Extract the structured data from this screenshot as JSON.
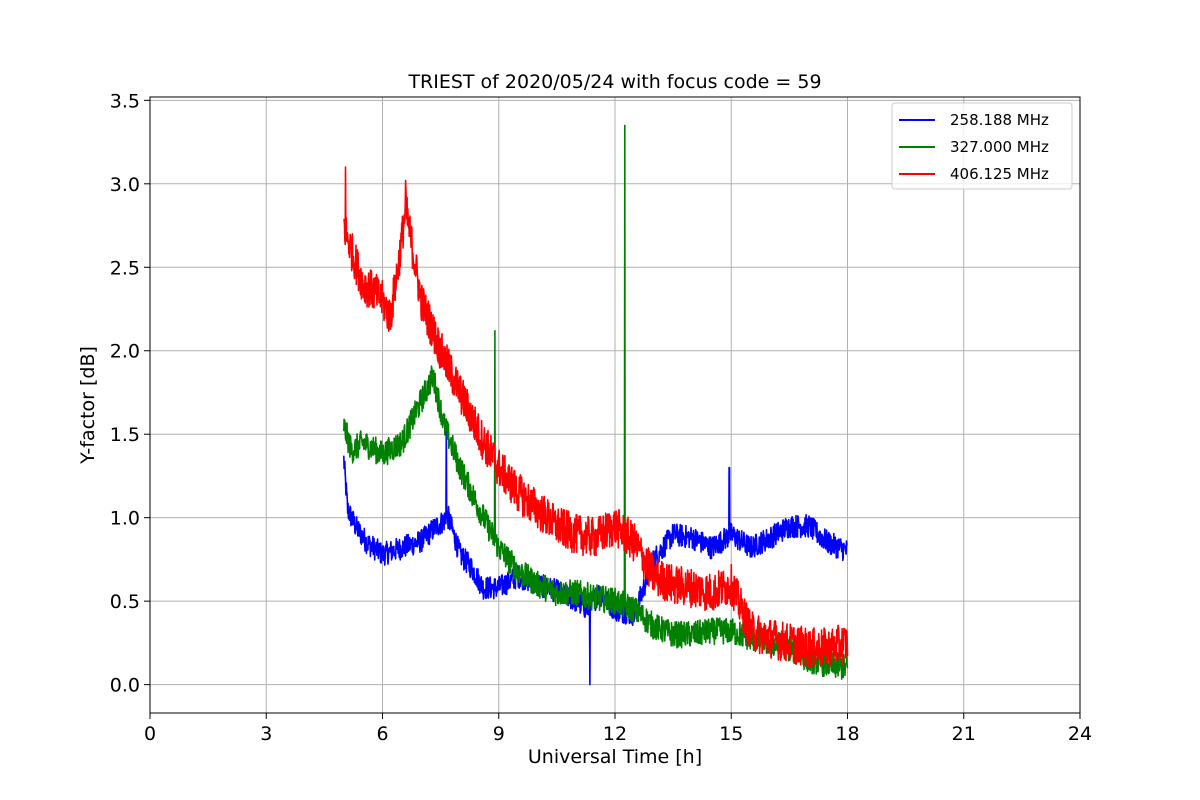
{
  "chart_data": {
    "type": "line",
    "title": "TRIEST of 2020/05/24 with focus code = 59",
    "xlabel": "Universal Time [h]",
    "ylabel": "Y-factor [dB]",
    "xlim": [
      0,
      24
    ],
    "ylim": [
      -0.17,
      3.52
    ],
    "xticks": [
      0,
      3,
      6,
      9,
      12,
      15,
      18,
      21,
      24
    ],
    "yticks": [
      0.0,
      0.5,
      1.0,
      1.5,
      2.0,
      2.5,
      3.0,
      3.5
    ],
    "ytick_labels": [
      "0.0",
      "0.5",
      "1.0",
      "1.5",
      "2.0",
      "2.5",
      "3.0",
      "3.5"
    ],
    "grid": true,
    "legend_position": "top-right",
    "series": [
      {
        "name": "258.188 MHz",
        "color": "#0000ff",
        "x": [
          5.0,
          5.1,
          5.3,
          5.6,
          6.0,
          6.5,
          7.0,
          7.4,
          7.7,
          8.0,
          8.3,
          8.6,
          9.0,
          9.5,
          10.0,
          10.5,
          11.0,
          11.3,
          11.6,
          12.0,
          12.5,
          13.0,
          13.5,
          14.0,
          14.5,
          15.0,
          15.5,
          16.0,
          16.5,
          17.0,
          17.5,
          18.0
        ],
        "y": [
          1.35,
          1.05,
          0.95,
          0.85,
          0.78,
          0.82,
          0.86,
          0.95,
          1.0,
          0.78,
          0.7,
          0.58,
          0.58,
          0.65,
          0.6,
          0.56,
          0.5,
          0.45,
          0.55,
          0.45,
          0.42,
          0.75,
          0.9,
          0.88,
          0.82,
          0.9,
          0.82,
          0.88,
          0.95,
          0.95,
          0.85,
          0.8
        ]
      },
      {
        "name": "327.000 MHz",
        "color": "#008000",
        "x": [
          5.0,
          5.2,
          5.5,
          6.0,
          6.5,
          7.0,
          7.3,
          7.6,
          8.0,
          8.5,
          9.0,
          9.5,
          10.0,
          10.5,
          11.0,
          11.5,
          12.0,
          12.5,
          13.0,
          13.5,
          14.0,
          14.5,
          15.0,
          15.5,
          16.0,
          16.5,
          17.0,
          17.5,
          18.0
        ],
        "y": [
          1.55,
          1.4,
          1.45,
          1.38,
          1.45,
          1.7,
          1.85,
          1.55,
          1.3,
          1.05,
          0.82,
          0.68,
          0.6,
          0.55,
          0.55,
          0.52,
          0.5,
          0.45,
          0.35,
          0.3,
          0.3,
          0.32,
          0.32,
          0.28,
          0.25,
          0.22,
          0.15,
          0.12,
          0.1
        ]
      },
      {
        "name": "406.125 MHz",
        "color": "#ff0000",
        "x": [
          5.0,
          5.2,
          5.5,
          5.8,
          6.0,
          6.2,
          6.4,
          6.6,
          7.0,
          7.5,
          8.0,
          8.5,
          9.0,
          9.5,
          10.0,
          10.5,
          11.0,
          11.5,
          12.0,
          12.5,
          13.0,
          13.5,
          14.0,
          14.5,
          15.0,
          15.5,
          16.0,
          16.5,
          17.0,
          17.5,
          18.0
        ],
        "y": [
          2.75,
          2.6,
          2.4,
          2.35,
          2.3,
          2.2,
          2.5,
          2.85,
          2.3,
          2.0,
          1.75,
          1.5,
          1.3,
          1.15,
          1.05,
          0.95,
          0.9,
          0.88,
          0.95,
          0.85,
          0.65,
          0.6,
          0.58,
          0.55,
          0.6,
          0.32,
          0.28,
          0.25,
          0.22,
          0.22,
          0.25
        ]
      }
    ],
    "spikes": [
      {
        "series": "327.000 MHz",
        "x": 12.25,
        "y": 3.35
      },
      {
        "series": "327.000 MHz",
        "x": 8.9,
        "y": 2.12
      },
      {
        "series": "406.125 MHz",
        "x": 5.05,
        "y": 3.1
      },
      {
        "series": "406.125 MHz",
        "x": 6.6,
        "y": 3.02
      },
      {
        "series": "258.188 MHz",
        "x": 7.65,
        "y": 1.55
      },
      {
        "series": "258.188 MHz",
        "x": 11.35,
        "y": 0.0
      },
      {
        "series": "258.188 MHz",
        "x": 14.95,
        "y": 1.3
      }
    ]
  }
}
